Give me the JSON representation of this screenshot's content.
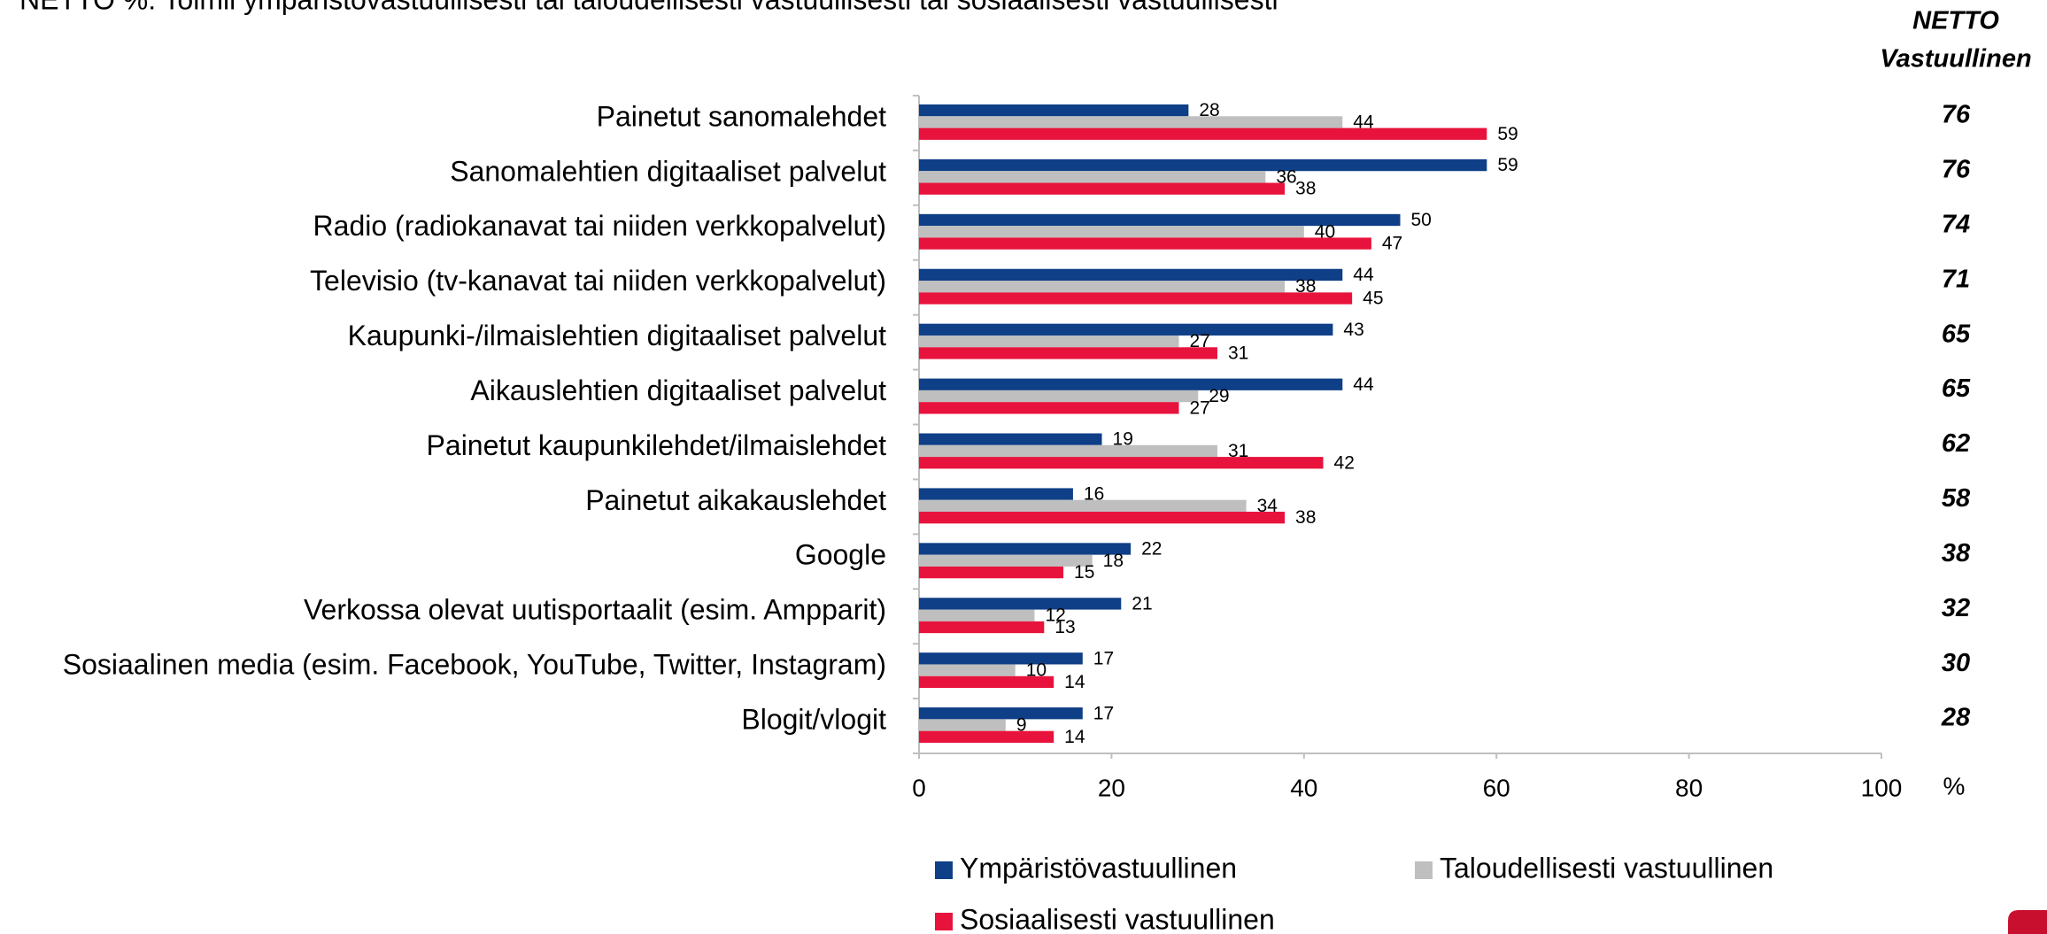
{
  "chart_data": {
    "type": "bar",
    "orientation": "horizontal",
    "title": "NETTO %: Toimii ympäristövastuullisesti tai taloudellisesti vastuullisesti tai sosiaalisesti vastuullisesti",
    "categories": [
      "Painetut sanomalehdet",
      "Sanomalehtien digitaaliset palvelut",
      "Radio (radiokanavat tai niiden verkkopalvelut)",
      "Televisio (tv-kanavat tai niiden verkkopalvelut)",
      "Kaupunki-/ilmaislehtien digitaaliset palvelut",
      "Aikauslehtien digitaaliset palvelut",
      "Painetut kaupunkilehdet/ilmaislehdet",
      "Painetut aikakauslehdet",
      "Google",
      "Verkossa olevat uutisportaalit (esim. Ampparit)",
      "Sosiaalinen media (esim. Facebook, YouTube, Twitter, Instagram)",
      "Blogit/vlogit"
    ],
    "series": [
      {
        "name": "Ympäristövastuullinen",
        "color": "#0e3f87",
        "values": [
          28,
          59,
          50,
          44,
          43,
          44,
          19,
          16,
          22,
          21,
          17,
          17
        ]
      },
      {
        "name": "Taloudellisesti vastuullinen",
        "color": "#bfbfbf",
        "values": [
          44,
          36,
          40,
          38,
          27,
          29,
          31,
          34,
          18,
          12,
          10,
          9
        ]
      },
      {
        "name": "Sosiaalisesti vastuullinen",
        "color": "#e8133c",
        "values": [
          59,
          38,
          47,
          45,
          31,
          27,
          42,
          38,
          15,
          13,
          14,
          14
        ]
      }
    ],
    "xlim": [
      0,
      100
    ],
    "xticks": [
      0,
      20,
      40,
      60,
      80,
      100
    ],
    "x_unit": "%",
    "netto_column": {
      "title": [
        "NETTO",
        "Vastuullinen"
      ],
      "values": [
        76,
        76,
        74,
        71,
        65,
        65,
        62,
        58,
        38,
        32,
        30,
        28
      ]
    }
  }
}
